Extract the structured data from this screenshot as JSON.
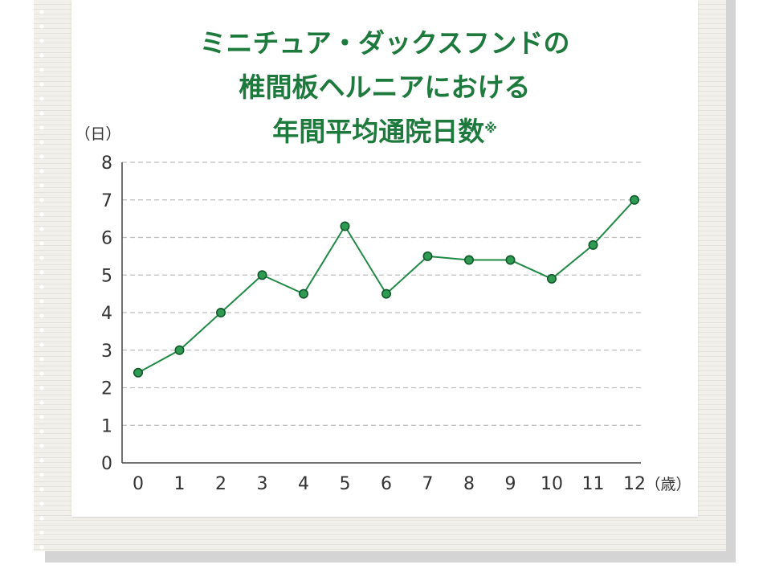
{
  "title": {
    "lines": [
      "ミニチュア・ダックスフンドの",
      "椎間板ヘルニアにおける",
      "年間平均通院日数"
    ],
    "note_mark": "※"
  },
  "colors": {
    "title": "#1d7a3c",
    "line": "#1f8a44",
    "marker": "#2e9a52",
    "marker_edge": "#11592b",
    "grid": "#bdbdbd",
    "axis": "#444444",
    "tick_text": "#333333"
  },
  "chart_data": {
    "type": "line",
    "title": "ミニチュア・ダックスフンドの椎間板ヘルニアにおける年間平均通院日数※",
    "ylabel": "（日）",
    "xlabel": "（歳）",
    "ylim": [
      0,
      8
    ],
    "yticks": [
      "0",
      "1",
      "2",
      "3",
      "4",
      "5",
      "6",
      "7",
      "8"
    ],
    "categories": [
      "0",
      "1",
      "2",
      "3",
      "4",
      "5",
      "6",
      "7",
      "8",
      "9",
      "10",
      "11",
      "12"
    ],
    "values": [
      2.4,
      3.0,
      4.0,
      5.0,
      4.5,
      6.3,
      4.5,
      5.5,
      5.4,
      5.4,
      4.9,
      5.8,
      7.0
    ],
    "grid": true,
    "legend": "none"
  }
}
